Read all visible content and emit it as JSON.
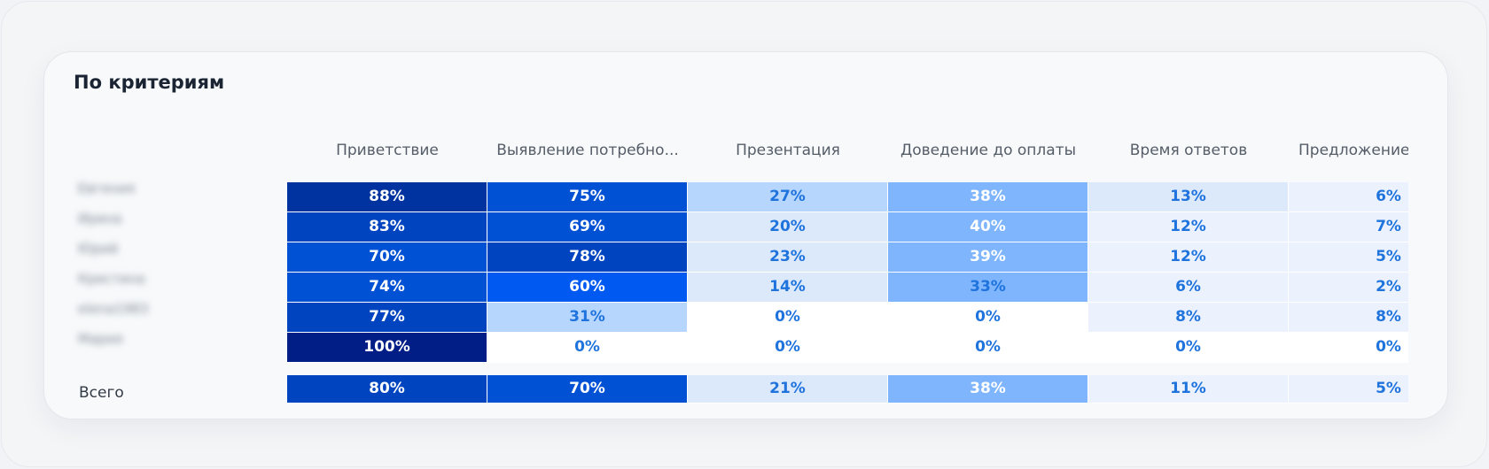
{
  "title": "По критериям",
  "columns": [
    "Приветствие",
    "Выявление потребно...",
    "Презентация",
    "Доведение до оплаты",
    "Время ответов",
    "Предложение выбр"
  ],
  "rows": [
    {
      "name": "Евгения",
      "values": [
        "88%",
        "75%",
        "27%",
        "38%",
        "13%",
        "6%"
      ],
      "levels": [
        88,
        75,
        27,
        38,
        13,
        6
      ]
    },
    {
      "name": "Ирина",
      "values": [
        "83%",
        "69%",
        "20%",
        "40%",
        "12%",
        "7%"
      ],
      "levels": [
        83,
        69,
        20,
        40,
        12,
        7
      ]
    },
    {
      "name": "Юрий",
      "values": [
        "70%",
        "78%",
        "23%",
        "39%",
        "12%",
        "5%"
      ],
      "levels": [
        70,
        78,
        23,
        39,
        12,
        5
      ]
    },
    {
      "name": "Кристина",
      "values": [
        "74%",
        "60%",
        "14%",
        "33%",
        "6%",
        "2%"
      ],
      "levels": [
        74,
        60,
        14,
        33,
        6,
        2
      ]
    },
    {
      "name": "elena1983",
      "values": [
        "77%",
        "31%",
        "0%",
        "0%",
        "8%",
        "8%"
      ],
      "levels": [
        77,
        31,
        0,
        0,
        8,
        8
      ]
    },
    {
      "name": "Мария",
      "values": [
        "100%",
        "0%",
        "0%",
        "0%",
        "0%",
        "0%"
      ],
      "levels": [
        100,
        0,
        0,
        0,
        0,
        0
      ]
    }
  ],
  "total": {
    "label": "Всего",
    "values": [
      "80%",
      "70%",
      "21%",
      "38%",
      "11%",
      "5%"
    ],
    "levels": [
      80,
      70,
      21,
      38,
      11,
      5
    ]
  },
  "colors": {
    "scale": [
      "#ffffff",
      "#ebf2fd",
      "#dce9fb",
      "#b7d6fd",
      "#7eb5fc",
      "#005af2",
      "#0051d4",
      "#0045bf",
      "#00339f",
      "#001e86"
    ],
    "light_text": "#1f73dd",
    "dark_text": "#ffffff"
  }
}
